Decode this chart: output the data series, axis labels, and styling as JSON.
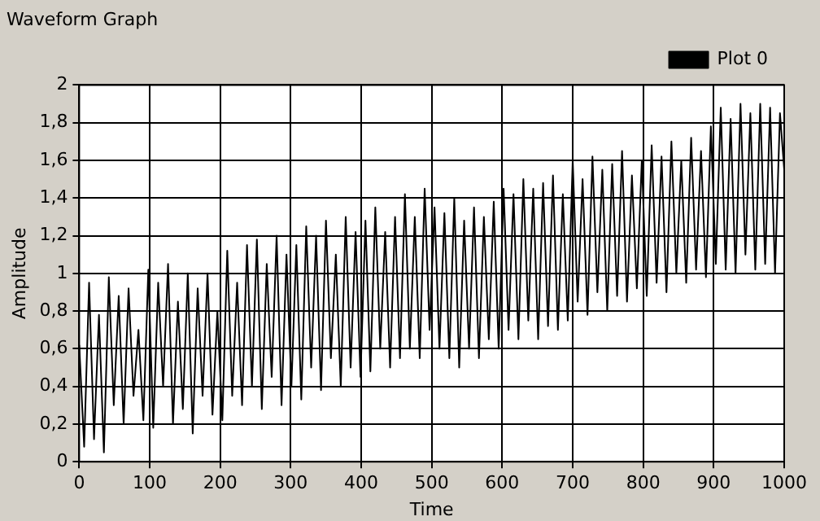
{
  "chart_data": {
    "type": "line",
    "title": "Waveform Graph",
    "xlabel": "Time",
    "ylabel": "Amplitude",
    "legend": "top right",
    "grid": true,
    "xlim": [
      0,
      1000
    ],
    "xticks": [
      0,
      100,
      200,
      300,
      400,
      500,
      600,
      700,
      800,
      900,
      1000
    ],
    "ylim": [
      0,
      2
    ],
    "yticks": [
      0,
      {
        "value": 0.2,
        "label": "0,2"
      },
      {
        "value": 0.4,
        "label": "0,4"
      },
      {
        "value": 0.6,
        "label": "0,6"
      },
      {
        "value": 0.8,
        "label": "0,8"
      },
      1,
      {
        "value": 1.2,
        "label": "1,2"
      },
      {
        "value": 1.4,
        "label": "1,4"
      },
      {
        "value": 1.6,
        "label": "1,6"
      },
      {
        "value": 1.8,
        "label": "1,8"
      },
      2
    ],
    "series": [
      {
        "name": "Plot 0",
        "color": "#000000",
        "x": [
          0,
          7,
          14,
          21,
          28,
          35,
          42,
          49,
          56,
          63,
          70,
          77,
          84,
          91,
          98,
          105,
          112,
          119,
          126,
          133,
          140,
          147,
          154,
          161,
          168,
          175,
          182,
          189,
          196,
          203,
          210,
          217,
          224,
          231,
          238,
          245,
          252,
          259,
          266,
          273,
          280,
          287,
          294,
          301,
          308,
          315,
          322,
          329,
          336,
          343,
          350,
          357,
          364,
          371,
          378,
          385,
          392,
          399,
          406,
          413,
          420,
          427,
          434,
          441,
          448,
          455,
          462,
          469,
          476,
          483,
          490,
          497,
          504,
          511,
          518,
          525,
          532,
          539,
          546,
          553,
          560,
          567,
          574,
          581,
          588,
          595,
          602,
          609,
          616,
          623,
          630,
          637,
          644,
          651,
          658,
          665,
          672,
          679,
          686,
          693,
          700,
          707,
          714,
          721,
          728,
          735,
          742,
          749,
          756,
          763,
          770,
          777,
          784,
          791,
          798,
          805,
          812,
          819,
          826,
          833,
          840,
          847,
          854,
          861,
          868,
          875,
          882,
          889,
          896,
          903,
          910,
          917,
          924,
          931,
          938,
          945,
          952,
          959,
          966,
          973,
          980,
          987,
          994,
          1000
        ],
        "values": [
          0.62,
          0.08,
          0.95,
          0.12,
          0.78,
          0.05,
          0.98,
          0.3,
          0.88,
          0.2,
          0.92,
          0.35,
          0.7,
          0.22,
          1.02,
          0.18,
          0.95,
          0.4,
          1.05,
          0.2,
          0.85,
          0.28,
          1.0,
          0.15,
          0.92,
          0.35,
          1.0,
          0.25,
          0.8,
          0.22,
          1.12,
          0.35,
          0.95,
          0.3,
          1.15,
          0.4,
          1.18,
          0.28,
          1.05,
          0.45,
          1.2,
          0.3,
          1.1,
          0.4,
          1.15,
          0.33,
          1.25,
          0.5,
          1.2,
          0.38,
          1.28,
          0.55,
          1.1,
          0.4,
          1.3,
          0.5,
          1.22,
          0.45,
          1.28,
          0.48,
          1.35,
          0.6,
          1.22,
          0.5,
          1.3,
          0.55,
          1.42,
          0.6,
          1.3,
          0.55,
          1.45,
          0.7,
          1.35,
          0.6,
          1.32,
          0.55,
          1.4,
          0.5,
          1.28,
          0.6,
          1.35,
          0.55,
          1.3,
          0.65,
          1.38,
          0.6,
          1.45,
          0.7,
          1.42,
          0.65,
          1.5,
          0.75,
          1.45,
          0.65,
          1.48,
          0.72,
          1.52,
          0.7,
          1.42,
          0.75,
          1.6,
          0.85,
          1.5,
          0.78,
          1.62,
          0.9,
          1.55,
          0.8,
          1.58,
          0.88,
          1.65,
          0.85,
          1.52,
          0.92,
          1.6,
          0.88,
          1.68,
          0.95,
          1.62,
          0.9,
          1.7,
          1.0,
          1.6,
          0.95,
          1.72,
          1.02,
          1.65,
          0.98,
          1.78,
          1.05,
          1.88,
          1.02,
          1.82,
          1.0,
          1.9,
          1.1,
          1.85,
          1.02,
          1.9,
          1.05,
          1.88,
          1.0,
          1.85,
          1.55
        ]
      }
    ]
  }
}
